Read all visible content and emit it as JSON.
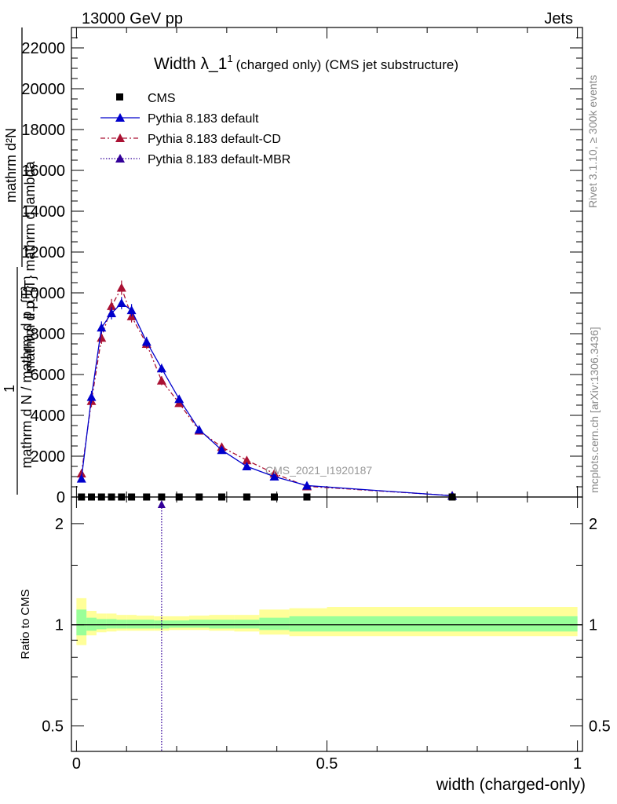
{
  "header": {
    "left": "13000 GeV pp",
    "right": "Jets"
  },
  "side_labels": {
    "rivet": "Rivet 3.1.10, ≥ 300k events",
    "mcplots": "mcplots.cern.ch [arXiv:1306.3436]"
  },
  "colors": {
    "pythia_default": "#0000cc",
    "pythia_cd": "#aa1133",
    "pythia_mbr": "#330099",
    "band_outer": "#ffff99",
    "band_inner": "#99ff99",
    "cms": "#000000"
  },
  "chart_data": [
    {
      "type": "line",
      "title": "Width λ_1",
      "title_superscript": "1",
      "subtitle": "(charged only) (CMS jet substructure)",
      "watermark": "CMS_2021_I1920187",
      "ylabel_lines": [
        "mathrm d²N",
        "mathrm d p_{T} mathrm d lambda",
        "1",
        "mathrm d N / mathrm d p_{T}"
      ],
      "ylim": [
        0,
        23000
      ],
      "yticks": [
        0,
        2000,
        4000,
        6000,
        8000,
        10000,
        12000,
        14000,
        16000,
        18000,
        20000,
        22000
      ],
      "xlim": [
        -0.01,
        1.01
      ],
      "legend_position": "top-left",
      "series": [
        {
          "name": "CMS",
          "marker": "square",
          "x": [
            0.01,
            0.03,
            0.05,
            0.07,
            0.09,
            0.11,
            0.14,
            0.17,
            0.205,
            0.245,
            0.29,
            0.34,
            0.395,
            0.46,
            0.75
          ],
          "y": [
            0,
            0,
            0,
            0,
            0,
            0,
            0,
            0,
            0,
            0,
            0,
            0,
            0,
            0,
            0
          ]
        },
        {
          "name": "Pythia 8.183 default",
          "marker": "triangle",
          "x": [
            0.01,
            0.03,
            0.05,
            0.07,
            0.09,
            0.11,
            0.14,
            0.17,
            0.205,
            0.245,
            0.29,
            0.34,
            0.395,
            0.46,
            0.75
          ],
          "y": [
            900,
            4900,
            8300,
            9000,
            9500,
            9150,
            7600,
            6300,
            4800,
            3300,
            2300,
            1500,
            1000,
            560,
            60
          ],
          "err": [
            150,
            300,
            300,
            300,
            300,
            300,
            250,
            220,
            180,
            120,
            100,
            80,
            60,
            40,
            10
          ]
        },
        {
          "name": "Pythia 8.183 default-CD",
          "marker": "triangle",
          "dash": "6,3,2,3",
          "x": [
            0.01,
            0.03,
            0.05,
            0.07,
            0.09,
            0.11,
            0.14,
            0.17,
            0.205,
            0.245,
            0.29,
            0.34,
            0.395,
            0.46,
            0.75
          ],
          "y": [
            1150,
            4700,
            7800,
            9350,
            10250,
            8850,
            7500,
            5700,
            4600,
            3250,
            2450,
            1800,
            1150,
            520,
            70
          ],
          "err": [
            150,
            300,
            300,
            350,
            350,
            300,
            250,
            220,
            180,
            120,
            100,
            80,
            60,
            40,
            10
          ]
        }
      ]
    },
    {
      "type": "line",
      "ylabel": "Ratio to CMS",
      "xlabel": "width (charged-only)",
      "ylim": [
        0.42,
        2.4
      ],
      "log_y": true,
      "yticks": [
        0.5,
        1,
        2
      ],
      "ytick_labels": [
        "0.5",
        "1",
        "2"
      ],
      "xticks": [
        0,
        0.5,
        1
      ],
      "xtick_labels": [
        "0",
        "0.5",
        "1"
      ],
      "xlim": [
        -0.01,
        1.01
      ],
      "bands": {
        "edges": [
          0.0,
          0.02,
          0.04,
          0.06,
          0.08,
          0.1,
          0.12,
          0.155,
          0.185,
          0.225,
          0.265,
          0.315,
          0.365,
          0.425,
          0.5,
          1.0
        ],
        "outer_low": [
          0.87,
          0.93,
          0.95,
          0.955,
          0.96,
          0.96,
          0.96,
          0.96,
          0.965,
          0.965,
          0.96,
          0.955,
          0.935,
          0.925,
          0.925
        ],
        "outer_high": [
          1.2,
          1.1,
          1.08,
          1.08,
          1.07,
          1.07,
          1.065,
          1.06,
          1.06,
          1.065,
          1.07,
          1.07,
          1.11,
          1.12,
          1.13
        ],
        "inner_low": [
          0.93,
          0.96,
          0.97,
          0.975,
          0.975,
          0.975,
          0.975,
          0.975,
          0.98,
          0.98,
          0.975,
          0.975,
          0.965,
          0.955,
          0.955
        ],
        "inner_high": [
          1.11,
          1.05,
          1.04,
          1.04,
          1.035,
          1.035,
          1.035,
          1.03,
          1.03,
          1.035,
          1.035,
          1.035,
          1.05,
          1.06,
          1.06
        ]
      },
      "mbr_marker_x": 0.17
    }
  ]
}
